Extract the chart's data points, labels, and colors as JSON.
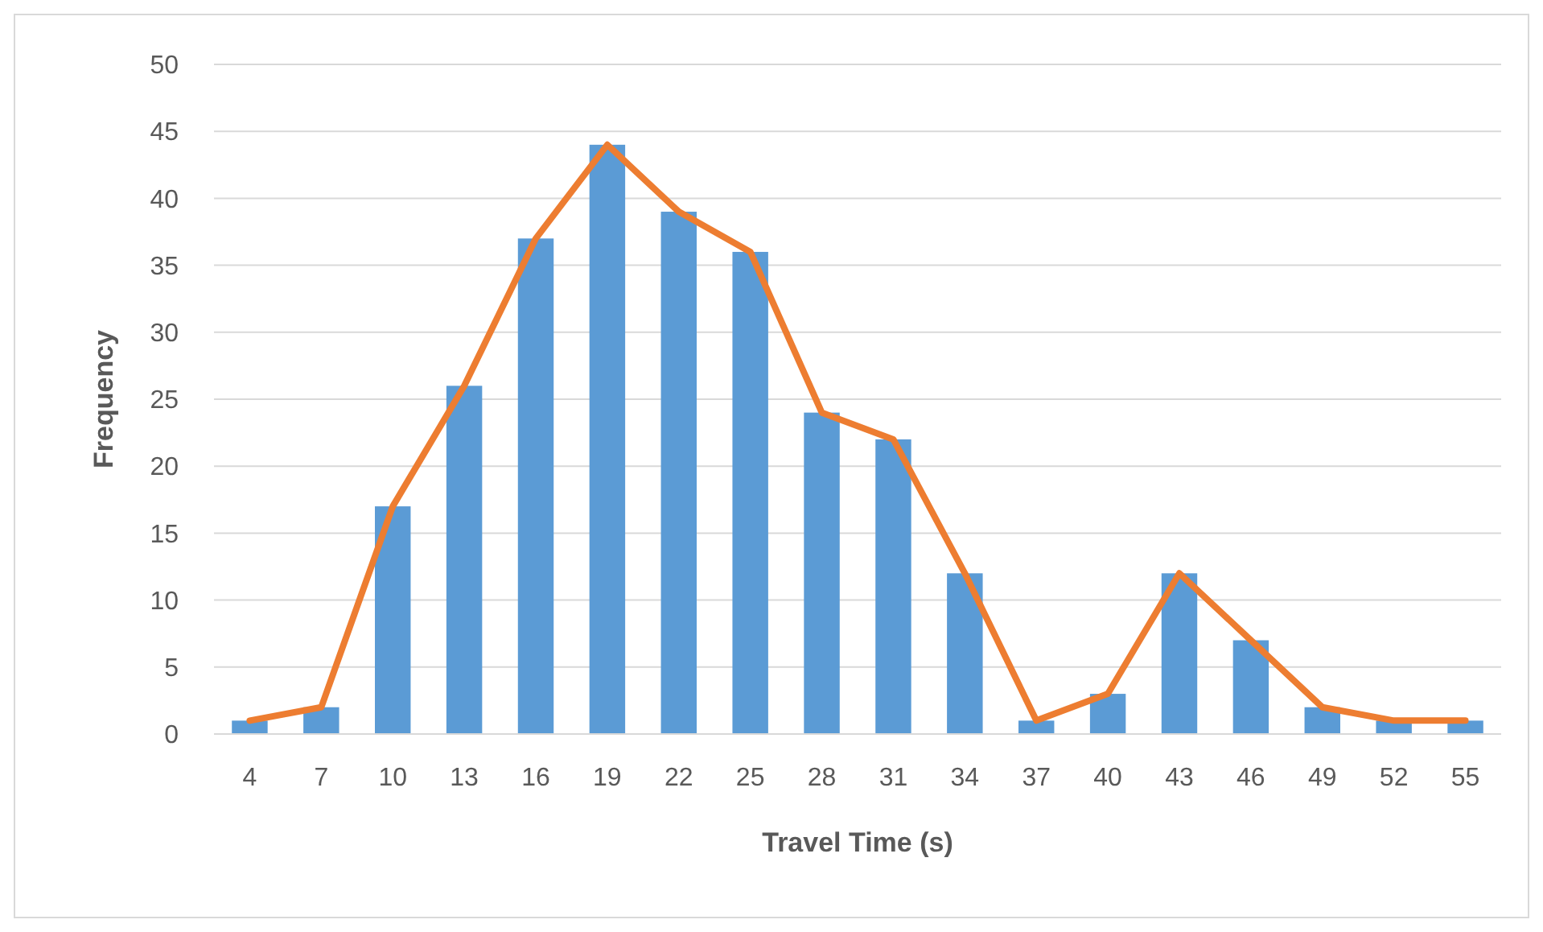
{
  "chart_data": {
    "type": "bar",
    "xlabel": "Travel Time (s)",
    "ylabel": "Frequency",
    "categories": [
      "4",
      "7",
      "10",
      "13",
      "16",
      "19",
      "22",
      "25",
      "28",
      "31",
      "34",
      "37",
      "40",
      "43",
      "46",
      "49",
      "52",
      "55"
    ],
    "series": [
      {
        "color": "#5b9bd5",
        "values": [
          1,
          2,
          17,
          26,
          37,
          44,
          39,
          36,
          24,
          22,
          12,
          1,
          3,
          12,
          7,
          2,
          1,
          1
        ]
      },
      {
        "type": "line",
        "color": "#ed7d31",
        "values": [
          1,
          2,
          17,
          26,
          37,
          44,
          39,
          36,
          24,
          22,
          12,
          1,
          3,
          12,
          7,
          2,
          1,
          1
        ],
        "marker": "none",
        "line_style": "solid"
      }
    ],
    "ylim": [
      0,
      50
    ],
    "yticks": [
      0,
      5,
      10,
      15,
      20,
      25,
      30,
      35,
      40,
      45,
      50
    ],
    "grid": "y"
  }
}
